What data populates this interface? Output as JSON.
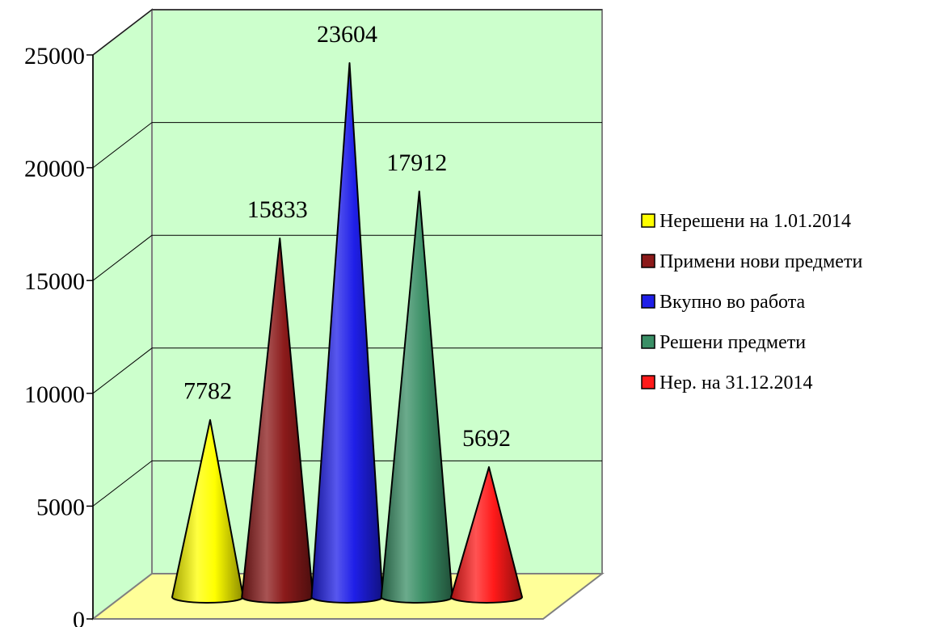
{
  "chart_data": {
    "type": "bar",
    "bar_shape": "cone",
    "categories": [
      "Нерешени на 1.01.2014",
      "Примени нови предмети",
      "Вкупно во работа",
      "Решени предмети",
      "Нер. на 31.12.2014"
    ],
    "values": [
      7782,
      15833,
      23604,
      17912,
      5692
    ],
    "data_labels": [
      "7782",
      "15833",
      "23604",
      "17912",
      "5692"
    ],
    "colors": [
      "#ffff00",
      "#8b1a1a",
      "#1f1fe8",
      "#3a8f66",
      "#ff1a1a"
    ],
    "ylim": [
      0,
      25000
    ],
    "y_ticks": [
      {
        "value": 0,
        "label": "0"
      },
      {
        "value": 5000,
        "label": "5000"
      },
      {
        "value": 10000,
        "label": "10000"
      },
      {
        "value": 15000,
        "label": "15000"
      },
      {
        "value": 20000,
        "label": "20000"
      },
      {
        "value": 25000,
        "label": "25000"
      }
    ],
    "grid": true,
    "legend": "right",
    "wall_color": "#ccffcc",
    "floor_color": "#ffff99",
    "title": "",
    "xlabel": "",
    "ylabel": ""
  }
}
